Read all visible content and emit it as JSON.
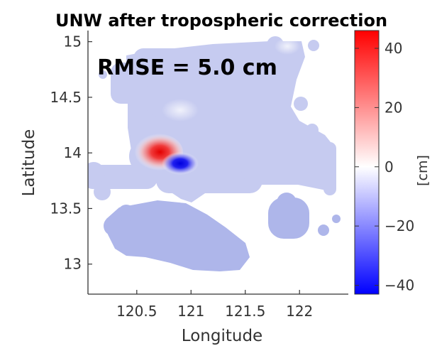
{
  "chart_data": {
    "type": "heatmap",
    "title": "UNW after tropospheric correction",
    "xlabel": "Longitude",
    "ylabel": "Latitude",
    "x_ticks": [
      "120.5",
      "121",
      "121.5",
      "122"
    ],
    "y_ticks": [
      "15",
      "14.5",
      "14",
      "13.5",
      "13"
    ],
    "xlim": [
      120.05,
      122.45
    ],
    "ylim": [
      12.73,
      15.1
    ],
    "annotation": "RMSE = 5.0 cm",
    "colorbar": {
      "label": "[cm]",
      "range": [
        -43,
        46
      ],
      "ticks": [
        "40",
        "20",
        "0",
        "−20",
        "−40"
      ],
      "colors": {
        "low": "#0000ff",
        "mid": "#ffffff",
        "high": "#ff0000"
      }
    },
    "values_note": "",
    "features": [
      {
        "kind": "positive-lobe",
        "lon": 120.82,
        "lat": 14.0,
        "value_cm": 38
      },
      {
        "kind": "negative-lobe",
        "lon": 120.98,
        "lat": 13.92,
        "value_cm": -40
      }
    ]
  },
  "colors": {
    "background_field": "#c6cbf0",
    "southern_field": "#aeb6ea",
    "axis": "#333333"
  }
}
